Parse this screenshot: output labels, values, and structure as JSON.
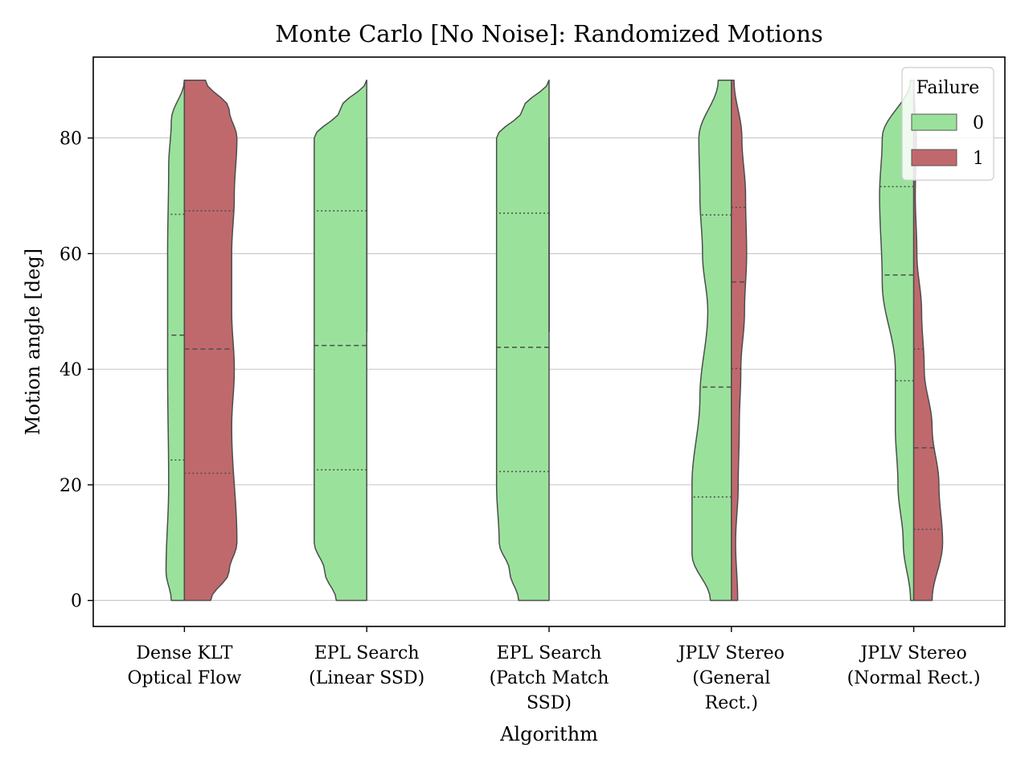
{
  "chart_data": {
    "type": "violin",
    "title": "Monte Carlo [No Noise]: Randomized Motions",
    "xlabel": "Algorithm",
    "ylabel": "Motion angle [deg]",
    "ylim": [
      -4.5,
      94
    ],
    "y_ticks": [
      0,
      20,
      40,
      60,
      80
    ],
    "grid": "horizontal",
    "legend": {
      "title": "Failure",
      "placement": "top-right",
      "entries": [
        {
          "label": "0",
          "color": "#9ae29b"
        },
        {
          "label": "1",
          "color": "#c0696d"
        }
      ]
    },
    "categories": [
      {
        "lines": [
          "Dense KLT",
          "Optical Flow"
        ]
      },
      {
        "lines": [
          "EPL Search",
          "(Linear SSD)"
        ]
      },
      {
        "lines": [
          "EPL Search",
          "(Patch Match",
          "SSD)"
        ]
      },
      {
        "lines": [
          "JPLV Stereo",
          "(General",
          "Rect.)"
        ]
      },
      {
        "lines": [
          "JPLV Stereo",
          "(Normal Rect.)"
        ]
      }
    ],
    "series": [
      {
        "name": "0",
        "side": "left",
        "color": "#9ae29b",
        "violins": [
          {
            "profile": [
              [
                0,
                0.25
              ],
              [
                5,
                0.35
              ],
              [
                20,
                0.3
              ],
              [
                40,
                0.32
              ],
              [
                60,
                0.32
              ],
              [
                75,
                0.3
              ],
              [
                83,
                0.25
              ],
              [
                90,
                0.0
              ]
            ],
            "quartiles": [
              24.3,
              45.9,
              66.8
            ]
          },
          {
            "profile": [
              [
                0,
                0.58
              ],
              [
                5,
                0.8
              ],
              [
                10,
                1.0
              ],
              [
                20,
                1.0
              ],
              [
                30,
                1.0
              ],
              [
                40,
                1.0
              ],
              [
                50,
                1.0
              ],
              [
                60,
                1.0
              ],
              [
                70,
                1.0
              ],
              [
                80,
                1.0
              ],
              [
                85,
                0.5
              ],
              [
                90,
                0.0
              ]
            ],
            "quartiles": [
              22.6,
              44.1,
              67.4
            ]
          },
          {
            "profile": [
              [
                0,
                0.58
              ],
              [
                5,
                0.75
              ],
              [
                10,
                0.95
              ],
              [
                20,
                1.0
              ],
              [
                30,
                1.0
              ],
              [
                40,
                1.0
              ],
              [
                50,
                1.0
              ],
              [
                60,
                1.0
              ],
              [
                70,
                1.0
              ],
              [
                80,
                1.0
              ],
              [
                85,
                0.5
              ],
              [
                90,
                0.0
              ]
            ],
            "quartiles": [
              22.3,
              43.8,
              67.0
            ]
          },
          {
            "profile": [
              [
                0,
                0.4
              ],
              [
                8,
                0.75
              ],
              [
                20,
                0.75
              ],
              [
                35,
                0.6
              ],
              [
                50,
                0.45
              ],
              [
                60,
                0.55
              ],
              [
                70,
                0.6
              ],
              [
                80,
                0.62
              ],
              [
                90,
                0.25
              ]
            ],
            "quartiles": [
              17.9,
              36.9,
              66.7
            ]
          },
          {
            "profile": [
              [
                0,
                0.06
              ],
              [
                10,
                0.2
              ],
              [
                20,
                0.3
              ],
              [
                30,
                0.35
              ],
              [
                40,
                0.35
              ],
              [
                55,
                0.6
              ],
              [
                70,
                0.65
              ],
              [
                80,
                0.6
              ],
              [
                90,
                0.06
              ]
            ],
            "quartiles": [
              38.0,
              56.3,
              71.6
            ]
          }
        ]
      },
      {
        "name": "1",
        "side": "right",
        "color": "#c0696d",
        "violins": [
          {
            "profile": [
              [
                0,
                0.5
              ],
              [
                5,
                0.85
              ],
              [
                10,
                1.0
              ],
              [
                30,
                0.9
              ],
              [
                40,
                0.95
              ],
              [
                50,
                0.9
              ],
              [
                60,
                0.9
              ],
              [
                70,
                0.95
              ],
              [
                80,
                1.0
              ],
              [
                85,
                0.85
              ],
              [
                90,
                0.4
              ]
            ],
            "quartiles": [
              22.0,
              43.5,
              67.4
            ]
          },
          {
            "profile": [
              [
                46.5,
                0.003
              ],
              [
                80,
                0.003
              ]
            ],
            "quartiles": []
          },
          {
            "profile": [
              [
                46.5,
                0.003
              ],
              [
                80,
                0.003
              ]
            ],
            "quartiles": []
          },
          {
            "profile": [
              [
                0,
                0.12
              ],
              [
                10,
                0.08
              ],
              [
                20,
                0.13
              ],
              [
                30,
                0.15
              ],
              [
                40,
                0.18
              ],
              [
                50,
                0.25
              ],
              [
                60,
                0.29
              ],
              [
                70,
                0.27
              ],
              [
                80,
                0.2
              ],
              [
                90,
                0.05
              ]
            ],
            "quartiles": [
              40.1,
              55.1,
              68.0
            ]
          },
          {
            "profile": [
              [
                0,
                0.35
              ],
              [
                10,
                0.55
              ],
              [
                20,
                0.48
              ],
              [
                30,
                0.35
              ],
              [
                40,
                0.2
              ],
              [
                50,
                0.15
              ],
              [
                60,
                0.06
              ],
              [
                70,
                0.03
              ],
              [
                80,
                0.05
              ],
              [
                90,
                0.0
              ]
            ],
            "quartiles": [
              12.3,
              26.4,
              43.5
            ]
          }
        ]
      }
    ]
  }
}
